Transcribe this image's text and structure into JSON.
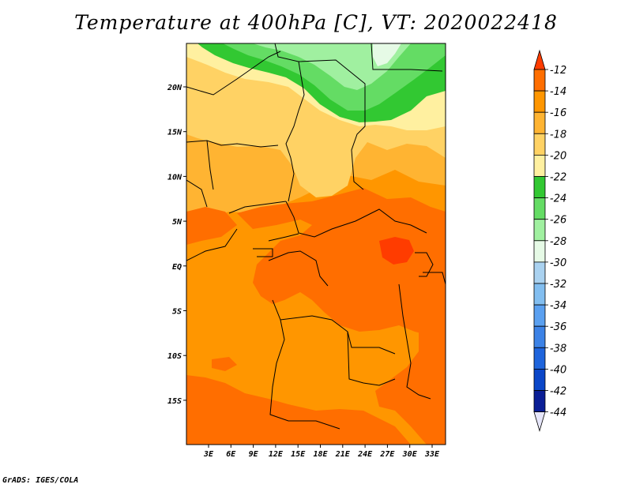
{
  "title": "Temperature at 400hPa [C], VT: 2020022418",
  "footer": "GrADS: IGES/COLA",
  "axes": {
    "lat_labels": [
      "20N",
      "15N",
      "10N",
      "5N",
      "EQ",
      "5S",
      "10S",
      "15S"
    ],
    "lon_labels": [
      "3E",
      "6E",
      "9E",
      "12E",
      "15E",
      "18E",
      "21E",
      "24E",
      "27E",
      "30E",
      "33E"
    ]
  },
  "legend": {
    "labels": [
      "-12",
      "-14",
      "-16",
      "-18",
      "-20",
      "-22",
      "-24",
      "-26",
      "-28",
      "-30",
      "-32",
      "-34",
      "-36",
      "-38",
      "-40",
      "-42",
      "-44"
    ],
    "colors": [
      "#ff3c00",
      "#ff6e00",
      "#ff9600",
      "#ffb432",
      "#ffd264",
      "#fff0a0",
      "#32c832",
      "#64dc64",
      "#a0f0a0",
      "#e6fae6",
      "#aad2f0",
      "#82bef0",
      "#5aa0f0",
      "#3c82e6",
      "#1e64dc",
      "#0a46c8",
      "#0a1e96",
      "#e6e6fa"
    ]
  }
}
